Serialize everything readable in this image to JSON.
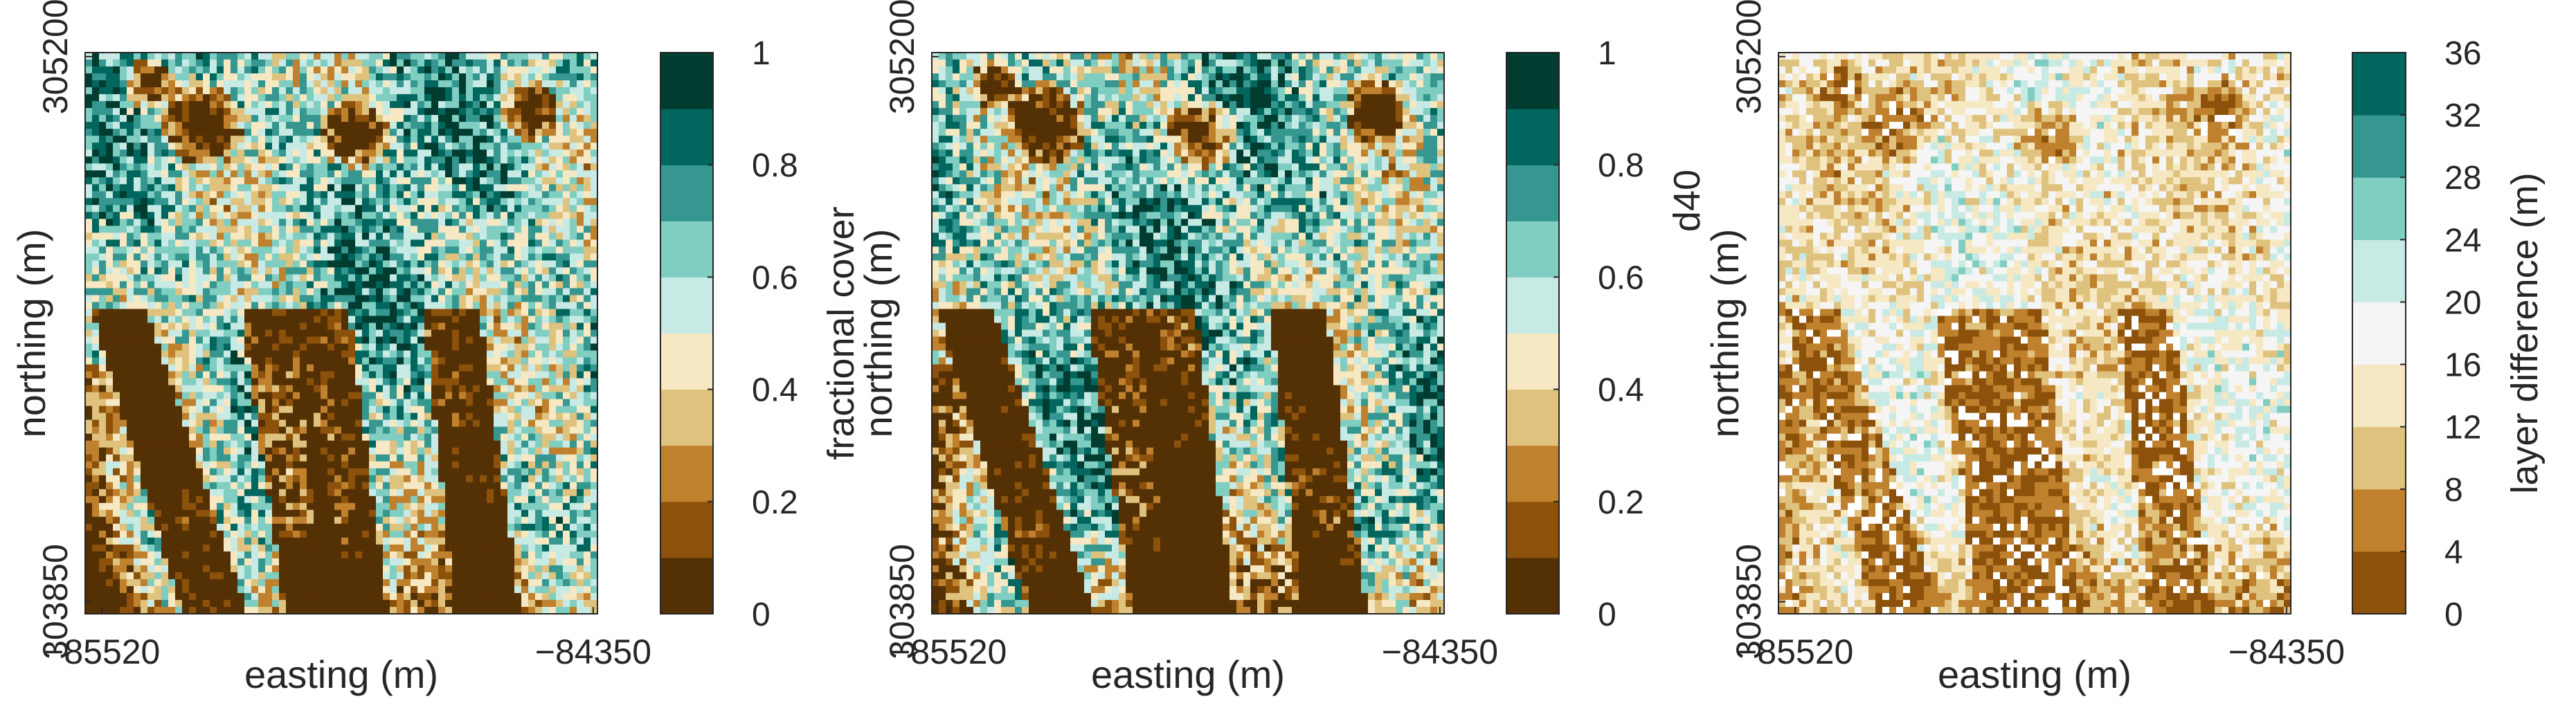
{
  "chart_data": [
    {
      "type": "heatmap",
      "xlabel": "easting (m)",
      "ylabel": "northing (m)",
      "x_ticks": [
        -85520,
        -84350
      ],
      "y_ticks": [
        303850,
        305200
      ],
      "xlim": [
        -85560,
        -84340
      ],
      "ylim": [
        303820,
        305210
      ],
      "colorbar": {
        "label": "fractional cover",
        "range": [
          0,
          1
        ],
        "ticks": [
          0,
          0.2,
          0.4,
          0.6,
          0.8,
          1
        ],
        "colors": [
          "#543005",
          "#8c510a",
          "#bf812d",
          "#dfc27d",
          "#f6e8c3",
          "#c7eae5",
          "#80cdc1",
          "#35978f",
          "#01665e",
          "#003c30"
        ]
      }
    },
    {
      "type": "heatmap",
      "xlabel": "easting (m)",
      "ylabel": "northing (m)",
      "x_ticks": [
        -85520,
        -84350
      ],
      "y_ticks": [
        303850,
        305200
      ],
      "xlim": [
        -85560,
        -84340
      ],
      "ylim": [
        303820,
        305210
      ],
      "colorbar": {
        "label": "d40",
        "range": [
          0,
          1
        ],
        "ticks": [
          0,
          0.2,
          0.4,
          0.6,
          0.8,
          1
        ],
        "colors": [
          "#543005",
          "#8c510a",
          "#bf812d",
          "#dfc27d",
          "#f6e8c3",
          "#c7eae5",
          "#80cdc1",
          "#35978f",
          "#01665e",
          "#003c30"
        ]
      }
    },
    {
      "type": "heatmap",
      "xlabel": "easting (m)",
      "ylabel": "northing (m)",
      "x_ticks": [
        -85520,
        -84350
      ],
      "y_ticks": [
        303850,
        305200
      ],
      "xlim": [
        -85560,
        -84340
      ],
      "ylim": [
        303820,
        305210
      ],
      "colorbar": {
        "label": "layer difference (m)",
        "range": [
          0,
          36
        ],
        "ticks": [
          0,
          4,
          8,
          12,
          16,
          20,
          24,
          28,
          32,
          36
        ],
        "colors": [
          "#8c510a",
          "#bf812d",
          "#dfc27d",
          "#f6e8c3",
          "#f5f5f5",
          "#c7eae5",
          "#80cdc1",
          "#35978f",
          "#01665e"
        ]
      }
    }
  ]
}
